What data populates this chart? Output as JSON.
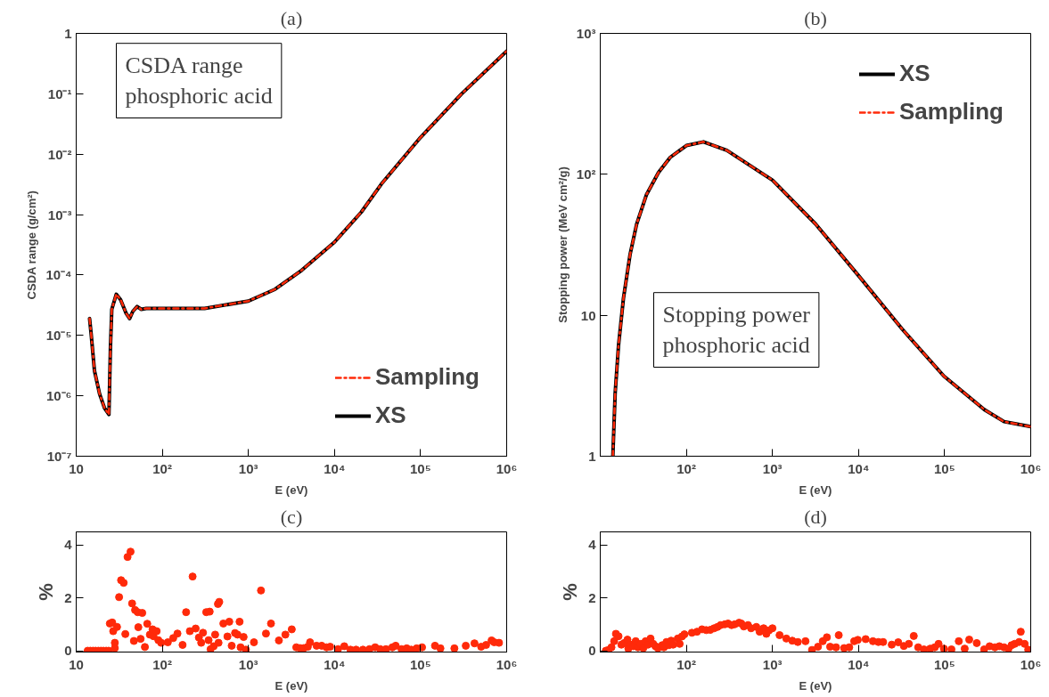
{
  "chart_data": [
    {
      "type": "line",
      "title": "(a)",
      "xlabel": "E (eV)",
      "ylabel": "CSDA range (g/cm²)",
      "log": "xy",
      "grid": false,
      "legend": "bottom right",
      "annotations": [
        "CSDA range\nphosphoric acid"
      ],
      "xlim": [
        10,
        1000000
      ],
      "xticks": [
        10,
        {
          "value": 100,
          "label": "10²"
        },
        {
          "value": 1000,
          "label": "10³"
        },
        {
          "value": 10000,
          "label": "10⁴"
        },
        {
          "value": 100000,
          "label": "10⁵"
        },
        {
          "value": 1000000,
          "label": "10⁶"
        }
      ],
      "ylim": [
        1e-07,
        1
      ],
      "yticks": [
        {
          "value": 1e-07,
          "label": "10⁻⁷"
        },
        {
          "value": 1e-06,
          "label": "10⁻⁶"
        },
        {
          "value": 1e-05,
          "label": "10⁻⁵"
        },
        {
          "value": 0.0001,
          "label": "10⁻⁴"
        },
        {
          "value": 0.001,
          "label": "10⁻³"
        },
        {
          "value": 0.01,
          "label": "10⁻²"
        },
        {
          "value": 0.1,
          "label": "10⁻¹"
        },
        1
      ],
      "x": [
        14.3,
        14.9,
        16.3,
        18.7,
        21.3,
        24.0,
        25.0,
        25.9,
        29.2,
        32.8,
        38.1,
        41.7,
        45.5,
        51,
        57,
        65,
        310,
        1000,
        2040,
        4170,
        10000,
        20500,
        35000,
        100000,
        300000,
        1000000
      ],
      "series": [
        {
          "name": "Sampling",
          "color": "#ff2a0a",
          "line_style": "dashed",
          "values": [
            1.9e-05,
            1.07e-05,
            2.6e-06,
            1.07e-06,
            6.3e-07,
            4.9e-07,
            6.5e-06,
            2.7e-05,
            4.8e-05,
            3.9e-05,
            2.3e-05,
            1.9e-05,
            2.5e-05,
            3e-05,
            2.7e-05,
            2.8e-05,
            2.8e-05,
            3.7e-05,
            5.8e-05,
            0.00012,
            0.00035,
            0.0011,
            0.0032,
            0.019,
            0.1,
            0.51
          ]
        },
        {
          "name": "XS",
          "color": "#000000",
          "line_style": "solid",
          "values": [
            1.9e-05,
            1.07e-05,
            2.6e-06,
            1.07e-06,
            6.3e-07,
            4.9e-07,
            6.5e-06,
            2.7e-05,
            4.8e-05,
            3.9e-05,
            2.3e-05,
            1.9e-05,
            2.5e-05,
            3e-05,
            2.7e-05,
            2.8e-05,
            2.8e-05,
            3.7e-05,
            5.8e-05,
            0.00012,
            0.00035,
            0.0011,
            0.0032,
            0.019,
            0.1,
            0.51
          ]
        }
      ]
    },
    {
      "type": "line",
      "title": "(b)",
      "xlabel": "E (eV)",
      "ylabel": "Stopping power (MeV cm²/g)",
      "log": "xy",
      "grid": false,
      "legend": "top right",
      "annotations": [
        "Stopping power\nphosphoric acid"
      ],
      "xlim": [
        10,
        1000000
      ],
      "xticks": [
        {
          "value": 10,
          "label": null
        },
        {
          "value": 100,
          "label": "10²"
        },
        {
          "value": 1000,
          "label": "10³"
        },
        {
          "value": 10000,
          "label": "10⁴"
        },
        {
          "value": 100000,
          "label": "10⁵"
        },
        {
          "value": 1000000,
          "label": "10⁶"
        }
      ],
      "ylim": [
        1,
        1000
      ],
      "yticks": [
        1,
        10,
        {
          "value": 100,
          "label": "10²"
        },
        {
          "value": 1000,
          "label": "10³"
        }
      ],
      "x": [
        14.0,
        14.9,
        16.3,
        18.6,
        22.2,
        26.5,
        34.5,
        47.5,
        65,
        100,
        158,
        295,
        1000,
        3160,
        9800,
        32000,
        98000,
        290000,
        490000,
        1000000
      ],
      "series": [
        {
          "name": "XS",
          "color": "#000000",
          "line_style": "solid",
          "values": [
            1.0,
            2.8,
            6.1,
            13.2,
            27,
            44.5,
            72,
            103,
            132,
            160,
            170,
            148,
            91,
            44.5,
            19.4,
            8.0,
            3.7,
            2.14,
            1.76,
            1.62
          ]
        },
        {
          "name": "Sampling",
          "color": "#ff2a0a",
          "line_style": "dashed",
          "values": [
            1.0,
            2.8,
            6.1,
            13.2,
            27,
            44.5,
            72,
            103,
            132,
            160,
            170,
            148,
            91,
            44.5,
            19.4,
            8.0,
            3.7,
            2.14,
            1.76,
            1.62
          ]
        }
      ]
    },
    {
      "type": "scatter",
      "title": "(c)",
      "xlabel": "E (eV)",
      "ylabel": "%",
      "log": "x",
      "grid": false,
      "legend": false,
      "marker": "circle",
      "color": "#ff2a0a",
      "xlim": [
        10,
        1000000
      ],
      "xticks": [
        10,
        {
          "value": 100,
          "label": "10²"
        },
        {
          "value": 1000,
          "label": "10³"
        },
        {
          "value": 10000,
          "label": "10⁴"
        },
        {
          "value": 100000,
          "label": "10⁵"
        },
        {
          "value": 1000000,
          "label": "10⁶"
        }
      ],
      "ylim": [
        -0.05,
        4.5
      ],
      "yticks": [
        0,
        2,
        4
      ],
      "x": [
        13.6,
        14.6,
        15.7,
        16.8,
        18.1,
        19.4,
        20.7,
        22.3,
        23.8,
        24.6,
        26.2,
        26.9,
        28.1,
        28.1,
        29.8,
        31.5,
        33.2,
        35.6,
        37.2,
        39.5,
        42.8,
        44.6,
        46.8,
        48.3,
        51.8,
        52.7,
        56.0,
        58.5,
        62.8,
        66.9,
        71.7,
        77,
        79,
        86,
        90,
        97,
        116,
        134,
        150,
        172,
        189,
        209,
        225,
        244,
        266,
        283,
        297,
        324,
        345,
        355,
        364,
        395,
        411,
        443,
        450,
        459,
        512,
        571,
        600,
        640,
        700,
        748,
        790,
        812,
        880,
        935,
        1160,
        1400,
        1600,
        1830,
        2260,
        2690,
        3190,
        3600,
        3980,
        4400,
        4900,
        5200,
        6200,
        7100,
        8100,
        8900,
        11000,
        13000,
        15300,
        17800,
        21400,
        25500,
        29700,
        34000,
        39600,
        47000,
        51400,
        60000,
        69000,
        78000,
        90000,
        104000,
        147000,
        170000,
        247000,
        335000,
        423000,
        505000,
        577000,
        668000,
        717000,
        815000
      ],
      "values": [
        0,
        0,
        0,
        0,
        0,
        0,
        0,
        0,
        0,
        1.03,
        1.07,
        0.74,
        0.3,
        0.1,
        0.9,
        2.03,
        2.67,
        2.57,
        0.63,
        3.55,
        3.75,
        1.79,
        0.37,
        1.54,
        1.46,
        0.89,
        0.45,
        1.43,
        0.14,
        1.02,
        0.61,
        0.81,
        0.55,
        0.74,
        0.4,
        0.3,
        0.32,
        0.48,
        0.65,
        0.22,
        1.46,
        0.74,
        2.81,
        0.84,
        0.5,
        0.3,
        0.68,
        1.46,
        0.4,
        1.48,
        0.06,
        0.17,
        0.61,
        1.77,
        0.3,
        1.85,
        1.03,
        0.54,
        1.1,
        0.19,
        0.67,
        0.61,
        1.1,
        0.13,
        0.52,
        0.04,
        0.32,
        2.28,
        0.65,
        1.03,
        0.39,
        0.61,
        0.81,
        0.13,
        0.1,
        0.1,
        0.15,
        0.32,
        0.19,
        0.19,
        0.13,
        0.15,
        0.06,
        0.17,
        0.04,
        0.04,
        0.04,
        0.06,
        0.13,
        0.06,
        0.06,
        0.13,
        0.19,
        0.06,
        0.09,
        0.04,
        0.09,
        0.13,
        0.19,
        0.09,
        0.09,
        0.19,
        0.28,
        0.15,
        0.22,
        0.39,
        0.32,
        0.3
      ]
    },
    {
      "type": "scatter",
      "title": "(d)",
      "xlabel": "E (eV)",
      "ylabel": "%",
      "log": "x",
      "grid": false,
      "legend": false,
      "marker": "circle",
      "color": "#ff2a0a",
      "xlim": [
        10,
        1000000
      ],
      "xticks": [
        {
          "value": 10,
          "label": null
        },
        {
          "value": 100,
          "label": "10²"
        },
        {
          "value": 1000,
          "label": "10³"
        },
        {
          "value": 10000,
          "label": "10⁴"
        },
        {
          "value": 100000,
          "label": "10⁵"
        },
        {
          "value": 1000000,
          "label": "10⁶"
        }
      ],
      "ylim": [
        -0.05,
        4.5
      ],
      "yticks": [
        0,
        2,
        4
      ],
      "x": [
        11.6,
        12.5,
        13.5,
        14.5,
        15.2,
        16.3,
        17.6,
        18.9,
        20.7,
        21.2,
        22.6,
        24.2,
        25.8,
        27.4,
        29.4,
        31.6,
        33.6,
        35.8,
        38.4,
        41.2,
        43.8,
        46.7,
        52.5,
        54.9,
        58.8,
        62.6,
        66.5,
        70.2,
        79.5,
        83.6,
        89.0,
        94.9,
        116,
        133,
        152,
        170,
        190,
        210,
        230,
        250,
        280,
        305,
        335,
        365,
        410,
        435,
        465,
        520,
        565,
        650,
        710,
        790,
        850,
        910,
        1000,
        1210,
        1450,
        1700,
        1970,
        2420,
        2880,
        3380,
        3840,
        4290,
        4680,
        5480,
        5890,
        6800,
        7800,
        8900,
        9800,
        12100,
        14700,
        17000,
        19300,
        24300,
        28900,
        33600,
        38400,
        43800,
        49300,
        57400,
        68000,
        76800,
        85000,
        98000,
        120000,
        146000,
        171000,
        193000,
        236000,
        288000,
        333000,
        384000,
        432000,
        490000,
        552000,
        600000,
        652000,
        733000,
        766000,
        850000,
        935000
      ],
      "values": [
        0,
        0.03,
        0.13,
        0.36,
        0.64,
        0.55,
        0.23,
        0.29,
        0.42,
        0.08,
        0.23,
        0.17,
        0.36,
        0.13,
        0.26,
        0.1,
        0.36,
        0.23,
        0.46,
        0.26,
        0.17,
        0.1,
        0.21,
        0.13,
        0.33,
        0.21,
        0.38,
        0.23,
        0.46,
        0.26,
        0.54,
        0.62,
        0.68,
        0.72,
        0.81,
        0.78,
        0.79,
        0.85,
        0.9,
        0.97,
        1.0,
        1.03,
        0.97,
        1.0,
        1.06,
        1.03,
        0.92,
        0.97,
        0.85,
        0.9,
        0.72,
        0.85,
        0.64,
        0.77,
        0.85,
        0.59,
        0.46,
        0.38,
        0.33,
        0.36,
        0.03,
        0.15,
        0.36,
        0.51,
        0.15,
        0.13,
        0.59,
        0.1,
        0.13,
        0.36,
        0.41,
        0.44,
        0.36,
        0.33,
        0.33,
        0.23,
        0.32,
        0.18,
        0.26,
        0.56,
        0.13,
        0.05,
        0.08,
        0.13,
        0.26,
        0.08,
        0.05,
        0.36,
        0.08,
        0.42,
        0.29,
        0.05,
        0.17,
        0.13,
        0.17,
        0.13,
        0.08,
        0.21,
        0.26,
        0.33,
        0.72,
        0.26,
        0.04
      ]
    }
  ]
}
